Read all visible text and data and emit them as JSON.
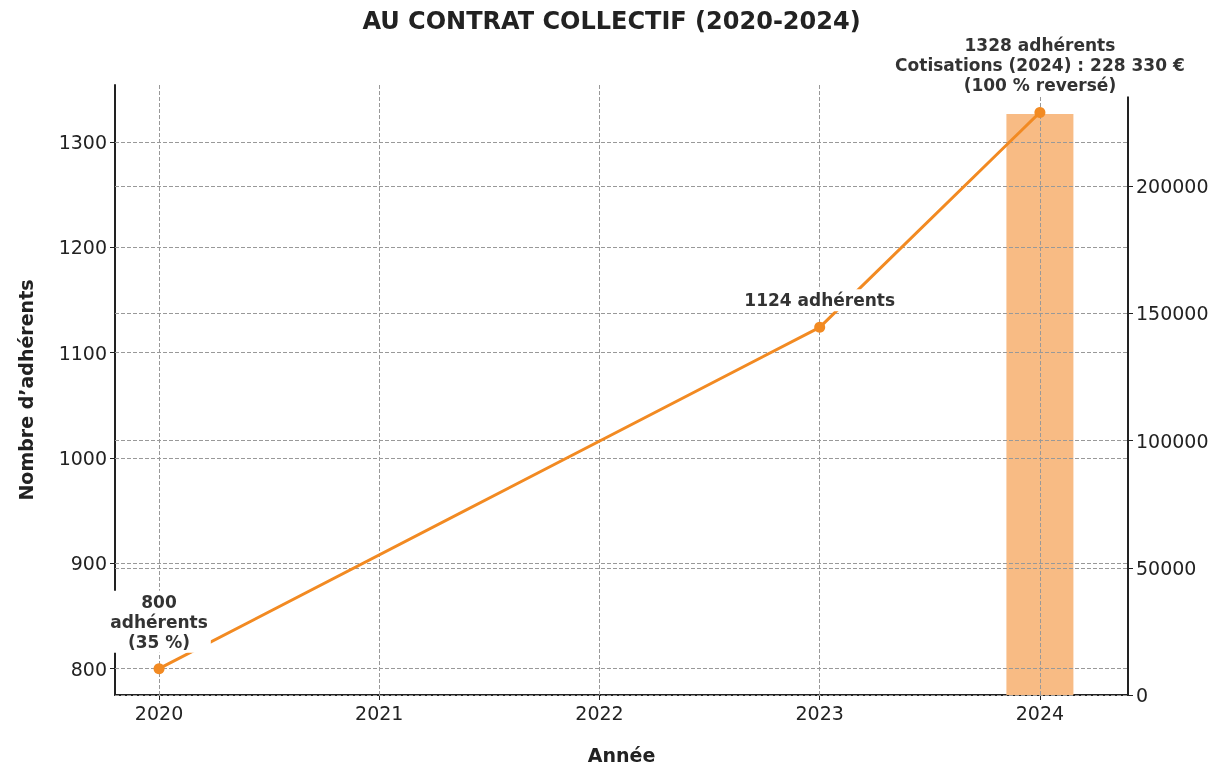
{
  "chart_data": {
    "type": "line",
    "title": "AU CONTRAT COLLECTIF (2020-2024)",
    "xlabel": "Année",
    "ylabel": "Nombre d’adhérents",
    "xlim": [
      2019.8,
      2024.4
    ],
    "xticks": [
      2020,
      2021,
      2022,
      2023,
      2024
    ],
    "ylim": [
      775,
      1354
    ],
    "yticks": [
      800,
      900,
      1000,
      1100,
      1200,
      1300
    ],
    "y2lim": [
      0,
      239700
    ],
    "y2ticks": [
      0,
      50000,
      100000,
      150000,
      200000
    ],
    "series": [
      {
        "type": "bar",
        "axis": "y2",
        "color": "#f8bb84",
        "x": [
          2024
        ],
        "values": [
          228330
        ]
      },
      {
        "color": "#f28a22",
        "x": [
          2020,
          2023,
          2024
        ],
        "values": [
          800,
          1124,
          1328
        ]
      }
    ],
    "annotations": [
      {
        "text": "800\nadhérents\n(35 %)",
        "x": 2020,
        "y": 800
      },
      {
        "text": "1124 adhérents",
        "x": 2023,
        "y": 1124
      },
      {
        "text": "1328 adhérents\nCotisations (2024) : 228 330 €\n(100 % reversé)",
        "x": 2024,
        "y": 1328
      }
    ],
    "grid": true,
    "marker": "circle",
    "line_style": "solid"
  }
}
